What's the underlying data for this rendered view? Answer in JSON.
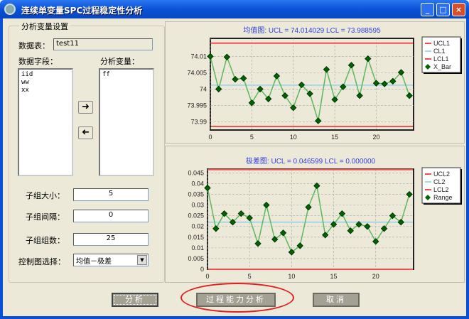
{
  "window": {
    "title": "连续单变量SPC过程稳定性分析",
    "buttons": {
      "minimize": "_",
      "maximize": "□",
      "close": "×"
    }
  },
  "settings": {
    "group_title": "分析变量设置",
    "table_label": "数据表：",
    "table_value": "test11",
    "fields_label": "数据字段：",
    "fields": [
      "iid",
      "ww",
      "xx"
    ],
    "vars_label": "分析变量：",
    "vars": [
      "ff"
    ],
    "add_icon": "arrow-right-icon",
    "remove_icon": "arrow-left-icon",
    "subgroup_size_label": "子组大小：",
    "subgroup_size": "5",
    "subgroup_interval_label": "子组间隔：",
    "subgroup_interval": "0",
    "subgroup_count_label": "子组组数：",
    "subgroup_count": "25",
    "chart_type_label": "控制图选择：",
    "chart_type": "均值－极差"
  },
  "buttons": {
    "analyze": "分析",
    "capability": "过程能力分析",
    "cancel": "取消"
  },
  "colors": {
    "limit": "#f05050",
    "center": "#a8d8e8",
    "line": "#5cb85c",
    "marker": "#006400",
    "annotation": "#e02020"
  },
  "chart_data": [
    {
      "type": "line",
      "title": "均值图:  UCL = 74.014029    LCL = 73.988595",
      "x": [
        0,
        1,
        2,
        3,
        4,
        5,
        6,
        7,
        8,
        9,
        10,
        11,
        12,
        13,
        14,
        15,
        16,
        17,
        18,
        19,
        20,
        21,
        22,
        23,
        24
      ],
      "ylim": [
        73.9875,
        74.0155
      ],
      "xlim": [
        0,
        24.5
      ],
      "yticks": [
        "73.99",
        "73.995",
        "74",
        "74.005",
        "74.01"
      ],
      "xticks": [
        "0",
        "5",
        "10",
        "15",
        "20"
      ],
      "ucl": 74.014029,
      "cl": 74.0012,
      "lcl": 73.988595,
      "grid": true,
      "legend": "right",
      "legend_entries": [
        "UCL1",
        "CL1",
        "LCL1",
        "X_Bar"
      ],
      "series": [
        {
          "name": "X_Bar",
          "values": [
            74.01,
            74.0,
            74.0098,
            74.003,
            74.0033,
            73.9958,
            74.0,
            73.997,
            74.004,
            73.998,
            73.9943,
            74.0013,
            73.9986,
            73.9903,
            74.006,
            73.9968,
            74.0007,
            74.0073,
            73.998,
            74.0093,
            74.0018,
            74.0016,
            74.0024,
            74.0051,
            73.998
          ]
        }
      ]
    },
    {
      "type": "line",
      "title": "极差图:  UCL = 0.046599    LCL = 0.000000",
      "x": [
        0,
        1,
        2,
        3,
        4,
        5,
        6,
        7,
        8,
        9,
        10,
        11,
        12,
        13,
        14,
        15,
        16,
        17,
        18,
        19,
        20,
        21,
        22,
        23,
        24
      ],
      "ylim": [
        0,
        0.0468
      ],
      "xlim": [
        0,
        24.5
      ],
      "yticks": [
        "0",
        "0.005",
        "0.01",
        "0.015",
        "0.02",
        "0.025",
        "0.03",
        "0.035",
        "0.04",
        "0.045"
      ],
      "xticks": [
        "0",
        "5",
        "10",
        "15",
        "20"
      ],
      "ucl": 0.046599,
      "cl": 0.022,
      "lcl": 0,
      "grid": true,
      "legend": "right",
      "legend_entries": [
        "UCL2",
        "CL2",
        "LCL2",
        "Range"
      ],
      "series": [
        {
          "name": "Range",
          "values": [
            0.038,
            0.019,
            0.026,
            0.022,
            0.026,
            0.024,
            0.012,
            0.03,
            0.014,
            0.017,
            0.008,
            0.011,
            0.029,
            0.039,
            0.016,
            0.021,
            0.026,
            0.018,
            0.021,
            0.02,
            0.013,
            0.019,
            0.025,
            0.022,
            0.035
          ]
        }
      ]
    }
  ]
}
